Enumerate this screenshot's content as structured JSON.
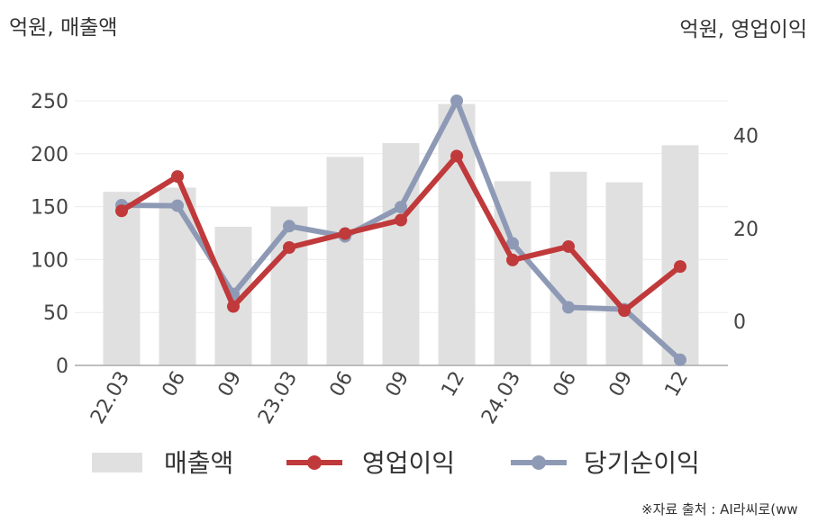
{
  "units": {
    "left": "억원, 매출액",
    "right": "억원, 영업이익"
  },
  "source": "※자료 출처 : AI라씨로(ww",
  "chart_data": {
    "type": "bar+line",
    "categories": [
      "22.03",
      "06",
      "09",
      "23.03",
      "06",
      "09",
      "12",
      "24.03",
      "06",
      "09",
      "12"
    ],
    "y_left": {
      "ticks": [
        0,
        50,
        100,
        150,
        200,
        250
      ],
      "range": [
        0,
        250
      ]
    },
    "y_right": {
      "ticks": [
        0,
        20,
        40
      ],
      "range": [
        -9.5,
        47.5
      ]
    },
    "series": [
      {
        "name": "매출액",
        "type": "bar",
        "axis": "left",
        "color": "#e0e0e0",
        "values": [
          164,
          168,
          131,
          150,
          197,
          210,
          247,
          174,
          183,
          173,
          208
        ]
      },
      {
        "name": "영업이익",
        "type": "line",
        "axis": "right",
        "color": "#c0393b",
        "values": [
          23.8,
          31.2,
          3.2,
          15.9,
          18.9,
          21.8,
          35.6,
          13.2,
          16.1,
          2.3,
          11.8
        ]
      },
      {
        "name": "당기순이익",
        "type": "line",
        "axis": "right",
        "color": "#8e9ab5",
        "values": [
          25.0,
          24.9,
          5.9,
          20.5,
          18.3,
          24.6,
          47.5,
          16.8,
          3.0,
          2.6,
          -8.3
        ]
      }
    ]
  }
}
